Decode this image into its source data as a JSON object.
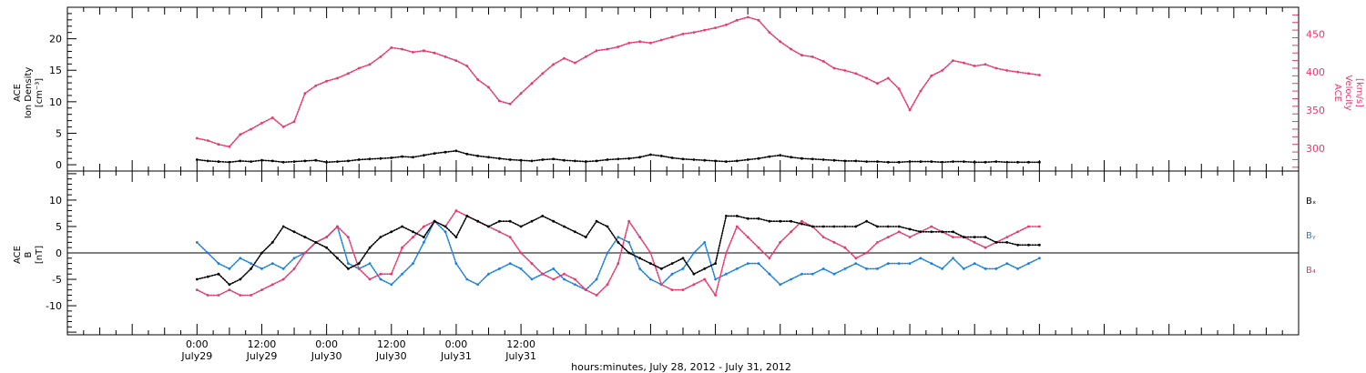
{
  "chart_data": [
    {
      "type": "scatter",
      "panel": "top",
      "ylabel_left": [
        "ACE",
        "Ion Density",
        "[cm⁻³]"
      ],
      "ylabel_right": [
        "ACE",
        "Velocity",
        "[km/s]"
      ],
      "ylim_left": [
        -1,
        25
      ],
      "yticks_left": [
        "0",
        "5",
        "10",
        "15",
        "20"
      ],
      "ylim_right": [
        270,
        485
      ],
      "yticks_right": [
        "300",
        "350",
        "400",
        "450"
      ],
      "series": [
        {
          "axis": "left",
          "color": "#000000",
          "x": [
            0,
            2,
            4,
            6,
            8,
            10,
            12,
            14,
            16,
            18,
            20,
            22,
            24,
            26,
            28,
            30,
            32,
            34,
            36,
            38,
            40,
            42,
            44,
            46,
            48,
            50,
            52,
            54,
            56,
            58,
            60,
            62,
            64,
            66,
            68,
            70,
            72,
            74,
            76,
            78,
            80,
            82,
            84,
            86,
            88,
            90,
            92,
            94,
            96,
            98,
            100,
            102,
            104,
            106,
            108,
            110,
            112,
            114,
            116,
            118,
            120,
            122,
            124,
            126,
            128,
            130,
            132,
            134,
            136,
            138,
            140,
            142,
            144,
            146,
            148,
            150,
            152,
            154,
            156
          ],
          "y": [
            0.8,
            0.6,
            0.5,
            0.4,
            0.6,
            0.5,
            0.7,
            0.6,
            0.4,
            0.5,
            0.6,
            0.7,
            0.4,
            0.5,
            0.6,
            0.8,
            0.9,
            1.0,
            1.1,
            1.3,
            1.2,
            1.5,
            1.8,
            2.0,
            2.2,
            1.7,
            1.4,
            1.2,
            1.0,
            0.8,
            0.7,
            0.6,
            0.8,
            0.9,
            0.7,
            0.6,
            0.5,
            0.6,
            0.8,
            0.9,
            1.0,
            1.2,
            1.6,
            1.4,
            1.1,
            0.9,
            0.8,
            0.7,
            0.6,
            0.5,
            0.6,
            0.8,
            1.0,
            1.3,
            1.5,
            1.2,
            1.0,
            0.9,
            0.8,
            0.7,
            0.6,
            0.6,
            0.5,
            0.5,
            0.4,
            0.4,
            0.5,
            0.5,
            0.5,
            0.4,
            0.5,
            0.5,
            0.4,
            0.4,
            0.5,
            0.4,
            0.4,
            0.4,
            0.4
          ]
        },
        {
          "axis": "right",
          "color": "#e8386c",
          "x": [
            0,
            2,
            4,
            6,
            8,
            10,
            12,
            14,
            16,
            18,
            20,
            22,
            24,
            26,
            28,
            30,
            32,
            34,
            36,
            38,
            40,
            42,
            44,
            46,
            48,
            50,
            52,
            54,
            56,
            58,
            60,
            62,
            64,
            66,
            68,
            70,
            72,
            74,
            76,
            78,
            80,
            82,
            84,
            86,
            88,
            90,
            92,
            94,
            96,
            98,
            100,
            102,
            104,
            106,
            108,
            110,
            112,
            114,
            116,
            118,
            120,
            122,
            124,
            126,
            128,
            130,
            132,
            134,
            136,
            138,
            140,
            142,
            144,
            146,
            148,
            150,
            152,
            154,
            156
          ],
          "y": [
            313,
            310,
            305,
            302,
            318,
            325,
            333,
            340,
            328,
            335,
            372,
            382,
            388,
            392,
            398,
            405,
            410,
            420,
            432,
            430,
            426,
            428,
            425,
            420,
            415,
            408,
            390,
            380,
            362,
            358,
            372,
            385,
            398,
            410,
            418,
            412,
            420,
            428,
            430,
            433,
            438,
            440,
            438,
            442,
            446,
            450,
            452,
            455,
            458,
            462,
            468,
            472,
            468,
            452,
            440,
            430,
            422,
            420,
            414,
            405,
            402,
            398,
            392,
            385,
            392,
            378,
            350,
            375,
            395,
            402,
            415,
            412,
            408,
            410,
            405,
            402,
            400,
            398,
            396
          ]
        }
      ]
    },
    {
      "type": "scatter",
      "panel": "bottom",
      "ylabel_left": [
        "ACE",
        "B",
        "[nT]"
      ],
      "ylim_left": [
        -15.5,
        15.5
      ],
      "yticks_left": [
        "-10",
        "-5",
        "0",
        "5",
        "10"
      ],
      "legend": [
        "Bₓ",
        "Bᵧ",
        "B₄"
      ],
      "legend_placement": "right",
      "series": [
        {
          "name": "Bx",
          "label_main": "B",
          "label_sub": "x",
          "color": "#000000",
          "x": [
            0,
            2,
            4,
            6,
            8,
            10,
            12,
            14,
            16,
            18,
            20,
            22,
            24,
            26,
            28,
            30,
            32,
            34,
            36,
            38,
            40,
            42,
            44,
            46,
            48,
            50,
            52,
            54,
            56,
            58,
            60,
            62,
            64,
            66,
            68,
            70,
            72,
            74,
            76,
            78,
            80,
            82,
            84,
            86,
            88,
            90,
            92,
            94,
            96,
            98,
            100,
            102,
            104,
            106,
            108,
            110,
            112,
            114,
            116,
            118,
            120,
            122,
            124,
            126,
            128,
            130,
            132,
            134,
            136,
            138,
            140,
            142,
            144,
            146,
            148,
            150,
            152,
            154,
            156
          ],
          "y": [
            -5,
            -4.5,
            -4,
            -6,
            -5,
            -3,
            0,
            2,
            5,
            4,
            3,
            2,
            1,
            -1,
            -3,
            -2,
            1,
            3,
            4,
            5,
            4,
            3,
            6,
            5,
            3,
            7,
            6,
            5,
            6,
            6,
            5,
            6,
            7,
            6,
            5,
            4,
            3,
            6,
            5,
            2,
            0,
            -1,
            -2,
            -3,
            -2,
            -1,
            -4,
            -3,
            -2,
            7,
            7,
            6.5,
            6.5,
            6,
            6,
            6,
            5.5,
            5,
            5,
            5,
            5,
            5,
            6,
            5,
            5,
            5,
            4.5,
            4,
            4,
            4,
            4,
            3,
            3,
            3,
            2,
            2,
            1.5,
            1.5,
            1.5
          ]
        },
        {
          "name": "By",
          "label_main": "B",
          "label_sub": "y",
          "color": "#1a80e0",
          "x": [
            0,
            2,
            4,
            6,
            8,
            10,
            12,
            14,
            16,
            18,
            20,
            22,
            24,
            26,
            28,
            30,
            32,
            34,
            36,
            38,
            40,
            42,
            44,
            46,
            48,
            50,
            52,
            54,
            56,
            58,
            60,
            62,
            64,
            66,
            68,
            70,
            72,
            74,
            76,
            78,
            80,
            82,
            84,
            86,
            88,
            90,
            92,
            94,
            96,
            98,
            100,
            102,
            104,
            106,
            108,
            110,
            112,
            114,
            116,
            118,
            120,
            122,
            124,
            126,
            128,
            130,
            132,
            134,
            136,
            138,
            140,
            142,
            144,
            146,
            148,
            150,
            152,
            154,
            156
          ],
          "y": [
            2,
            0,
            -2,
            -3,
            -1,
            -2,
            -3,
            -2,
            -3,
            -1,
            0,
            2,
            3,
            5,
            -2,
            -3,
            -2,
            -5,
            -6,
            -4,
            -2,
            2,
            6,
            4,
            -2,
            -5,
            -6,
            -4,
            -3,
            -2,
            -3,
            -5,
            -4,
            -3,
            -5,
            -6,
            -7,
            -5,
            0,
            3,
            2,
            -3,
            -5,
            -6,
            -4,
            -3,
            0,
            2,
            -5,
            -4,
            -3,
            -2,
            -2,
            -4,
            -6,
            -5,
            -4,
            -4,
            -3,
            -4,
            -3,
            -2,
            -3,
            -3,
            -2,
            -2,
            -2,
            -1,
            -2,
            -3,
            -1,
            -3,
            -2,
            -3,
            -3,
            -2,
            -3,
            -2,
            -1
          ]
        },
        {
          "name": "Bz",
          "label_main": "B",
          "label_sub": "z",
          "color": "#e8386c",
          "x": [
            0,
            2,
            4,
            6,
            8,
            10,
            12,
            14,
            16,
            18,
            20,
            22,
            24,
            26,
            28,
            30,
            32,
            34,
            36,
            38,
            40,
            42,
            44,
            46,
            48,
            50,
            52,
            54,
            56,
            58,
            60,
            62,
            64,
            66,
            68,
            70,
            72,
            74,
            76,
            78,
            80,
            82,
            84,
            86,
            88,
            90,
            92,
            94,
            96,
            98,
            100,
            102,
            104,
            106,
            108,
            110,
            112,
            114,
            116,
            118,
            120,
            122,
            124,
            126,
            128,
            130,
            132,
            134,
            136,
            138,
            140,
            142,
            144,
            146,
            148,
            150,
            152,
            154,
            156
          ],
          "y": [
            -7,
            -8,
            -8,
            -7,
            -8,
            -8,
            -7,
            -6,
            -5,
            -3,
            0,
            2,
            3,
            5,
            3,
            -3,
            -5,
            -4,
            -4,
            1,
            3,
            5,
            6,
            5,
            8,
            7,
            6,
            5,
            4,
            3,
            0,
            -2,
            -4,
            -5,
            -4,
            -5,
            -7,
            -8,
            -6,
            -2,
            6,
            3,
            0,
            -6,
            -7,
            -7,
            -6,
            -5,
            -8,
            0,
            5,
            3,
            1,
            -1,
            2,
            4,
            6,
            5,
            3,
            2,
            1,
            -1,
            0,
            2,
            3,
            4,
            3,
            4,
            5,
            4,
            3,
            3,
            2,
            1,
            2,
            3,
            4,
            5,
            5
          ]
        }
      ]
    }
  ],
  "x_axis": {
    "xlim": [
      -24,
      204
    ],
    "ticks": [
      {
        "x": 0,
        "line1": "0:00",
        "line2": "July29"
      },
      {
        "x": 12,
        "line1": "12:00",
        "line2": "July29"
      },
      {
        "x": 24,
        "line1": "0:00",
        "line2": "July30"
      },
      {
        "x": 36,
        "line1": "12:00",
        "line2": "July30"
      },
      {
        "x": 48,
        "line1": "0:00",
        "line2": "July31"
      },
      {
        "x": 60,
        "line1": "12:00",
        "line2": "July31"
      }
    ],
    "title": "hours:minutes, July 28, 2012 - July 31, 2012"
  }
}
